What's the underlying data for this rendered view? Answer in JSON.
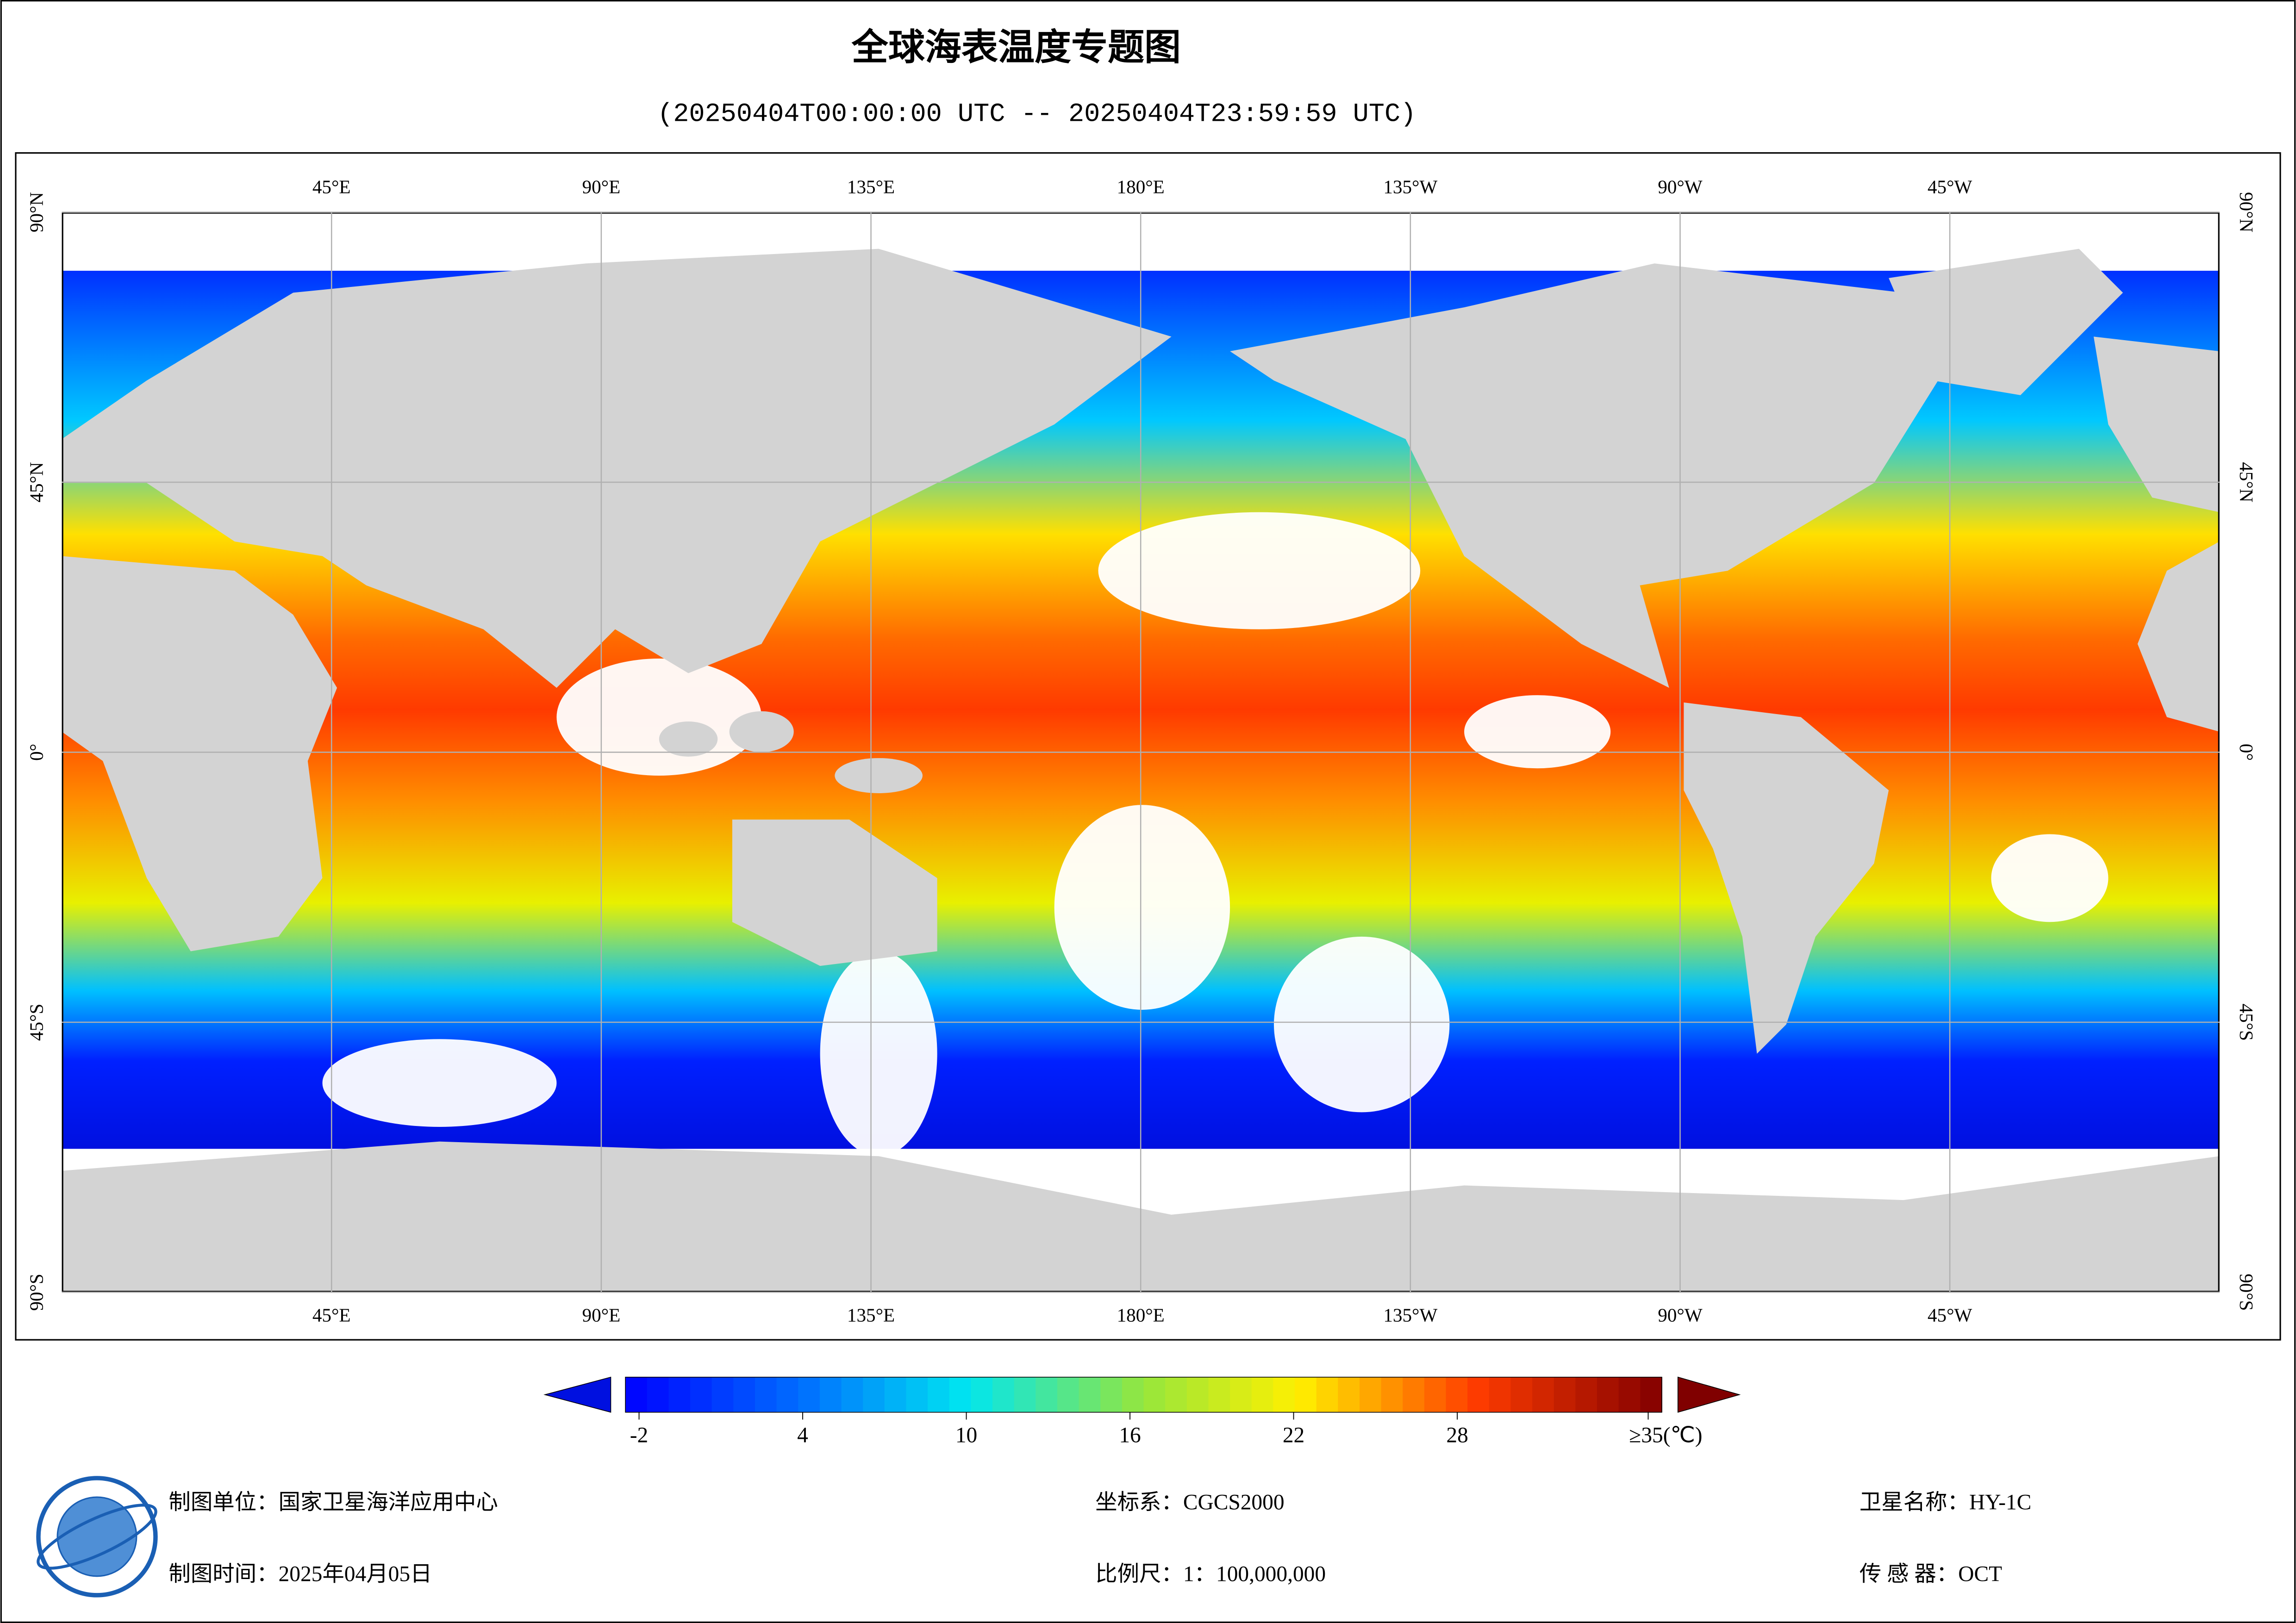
{
  "title": "全球海表温度专题图",
  "subtitle": "(20250404T00:00:00 UTC -- 20250404T23:59:59 UTC)",
  "map": {
    "xlim": [
      0,
      360
    ],
    "ylim": [
      -90,
      90
    ],
    "lon_ticks": [
      {
        "value": 45,
        "label": "45°E"
      },
      {
        "value": 90,
        "label": "90°E"
      },
      {
        "value": 135,
        "label": "135°E"
      },
      {
        "value": 180,
        "label": "180°E"
      },
      {
        "value": 225,
        "label": "135°W"
      },
      {
        "value": 270,
        "label": "90°W"
      },
      {
        "value": 315,
        "label": "45°W"
      }
    ],
    "lat_ticks": [
      {
        "value": 90,
        "label": "90°N"
      },
      {
        "value": 45,
        "label": "45°N"
      },
      {
        "value": 0,
        "label": "0°"
      },
      {
        "value": -45,
        "label": "45°S"
      },
      {
        "value": -90,
        "label": "90°S"
      }
    ]
  },
  "colorbar": {
    "range": [
      -2.5,
      35.5
    ],
    "ticks": [
      -2,
      4,
      10,
      16,
      22,
      28,
      {
        "value": 35,
        "label": "≥35(℃)"
      }
    ]
  },
  "footer": {
    "org": "制图单位：国家卫星海洋应用中心",
    "crs": "坐标系：CGCS2000",
    "satellite": "卫星名称：HY-1C",
    "date": "制图时间：2025年04月05日",
    "scale": "比例尺：1：100,000,000",
    "sensor": "传 感 器：OCT"
  }
}
